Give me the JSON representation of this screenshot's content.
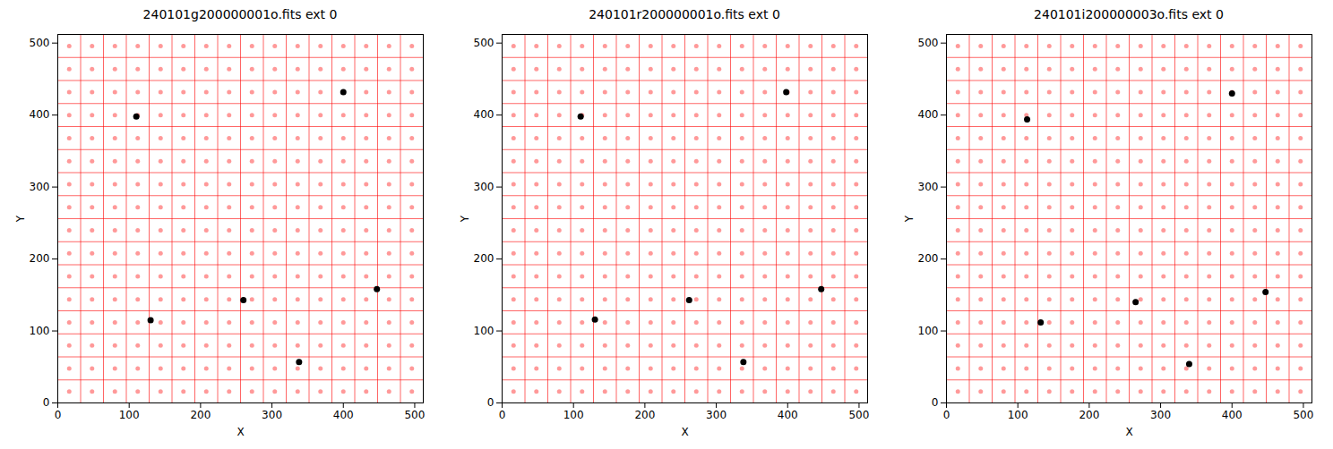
{
  "chart_data": [
    {
      "type": "scatter",
      "title": "240101g200000001o.fits ext 0",
      "x_label": "X",
      "y_label": "Y",
      "xlim": [
        0,
        512
      ],
      "ylim": [
        0,
        512
      ],
      "xticks": [
        0,
        100,
        200,
        300,
        400,
        500
      ],
      "yticks": [
        0,
        100,
        200,
        300,
        400,
        500
      ],
      "cells": {
        "edges": [
          32,
          64,
          96,
          128,
          160,
          192,
          224,
          256,
          288,
          320,
          352,
          384,
          416,
          448,
          480
        ],
        "centers": [
          16,
          48,
          80,
          112,
          144,
          176,
          208,
          240,
          272,
          304,
          336,
          368,
          400,
          432,
          464,
          496
        ],
        "color": "#ff0000"
      },
      "stars": {
        "x": [
          110,
          400,
          130,
          260,
          447,
          338
        ],
        "y": [
          398,
          432,
          115,
          143,
          158,
          57
        ],
        "color": "#000000",
        "marker": "circle"
      }
    },
    {
      "type": "scatter",
      "title": "240101r200000001o.fits ext 0",
      "x_label": "X",
      "y_label": "Y",
      "xlim": [
        0,
        512
      ],
      "ylim": [
        0,
        512
      ],
      "xticks": [
        0,
        100,
        200,
        300,
        400,
        500
      ],
      "yticks": [
        0,
        100,
        200,
        300,
        400,
        500
      ],
      "cells": {
        "edges": [
          32,
          64,
          96,
          128,
          160,
          192,
          224,
          256,
          288,
          320,
          352,
          384,
          416,
          448,
          480
        ],
        "centers": [
          16,
          48,
          80,
          112,
          144,
          176,
          208,
          240,
          272,
          304,
          336,
          368,
          400,
          432,
          464,
          496
        ],
        "color": "#ff0000"
      },
      "stars": {
        "x": [
          110,
          398,
          130,
          262,
          447,
          338
        ],
        "y": [
          398,
          432,
          116,
          143,
          158,
          57
        ],
        "color": "#000000",
        "marker": "circle"
      }
    },
    {
      "type": "scatter",
      "title": "240101i200000003o.fits ext 0",
      "x_label": "X",
      "y_label": "Y",
      "xlim": [
        0,
        512
      ],
      "ylim": [
        0,
        512
      ],
      "xticks": [
        0,
        100,
        200,
        300,
        400,
        500
      ],
      "yticks": [
        0,
        100,
        200,
        300,
        400,
        500
      ],
      "cells": {
        "edges": [
          32,
          64,
          96,
          128,
          160,
          192,
          224,
          256,
          288,
          320,
          352,
          384,
          416,
          448,
          480
        ],
        "centers": [
          16,
          48,
          80,
          112,
          144,
          176,
          208,
          240,
          272,
          304,
          336,
          368,
          400,
          432,
          464,
          496
        ],
        "color": "#ff0000"
      },
      "stars": {
        "x": [
          113,
          400,
          132,
          265,
          447,
          340
        ],
        "y": [
          394,
          430,
          112,
          140,
          154,
          54
        ],
        "color": "#000000",
        "marker": "circle"
      }
    }
  ]
}
